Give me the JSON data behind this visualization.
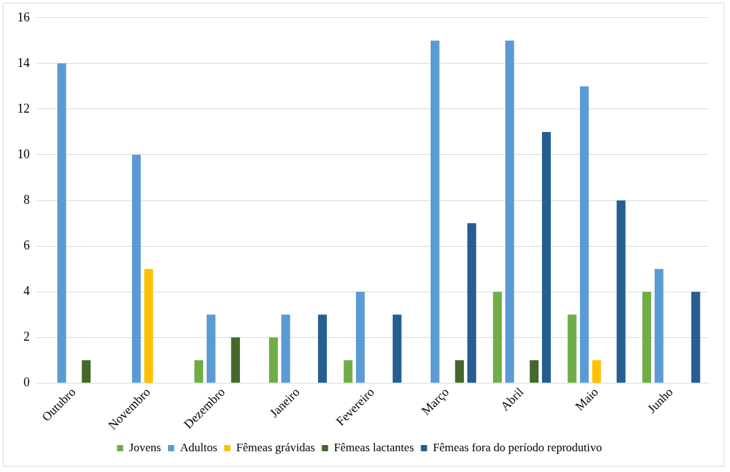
{
  "chart_data": {
    "type": "bar",
    "categories": [
      "Outubro",
      "Novembro",
      "Dezembro",
      "Janeiro",
      "Fevereiro",
      "Março",
      "Abril",
      "Maio",
      "Junho"
    ],
    "series": [
      {
        "name": "Jovens",
        "color": "#70ad47",
        "values": [
          null,
          null,
          1,
          2,
          1,
          null,
          4,
          3,
          4
        ]
      },
      {
        "name": "Adultos",
        "color": "#5b9bd5",
        "values": [
          14,
          10,
          3,
          3,
          4,
          15,
          15,
          13,
          5
        ]
      },
      {
        "name": "Fêmeas grávidas",
        "color": "#ffc000",
        "values": [
          null,
          5,
          null,
          null,
          null,
          null,
          null,
          1,
          null
        ]
      },
      {
        "name": "Fêmeas lactantes",
        "color": "#43682b",
        "values": [
          1,
          null,
          2,
          null,
          null,
          1,
          1,
          null,
          null
        ]
      },
      {
        "name": "Fêmeas fora do período reprodutivo",
        "color": "#255e91",
        "values": [
          null,
          null,
          null,
          3,
          3,
          7,
          11,
          8,
          4
        ]
      }
    ],
    "ylim": [
      0,
      16
    ],
    "yticks": [
      0,
      2,
      4,
      6,
      8,
      10,
      12,
      14,
      16
    ],
    "grid": "y",
    "legend": "bottom"
  }
}
